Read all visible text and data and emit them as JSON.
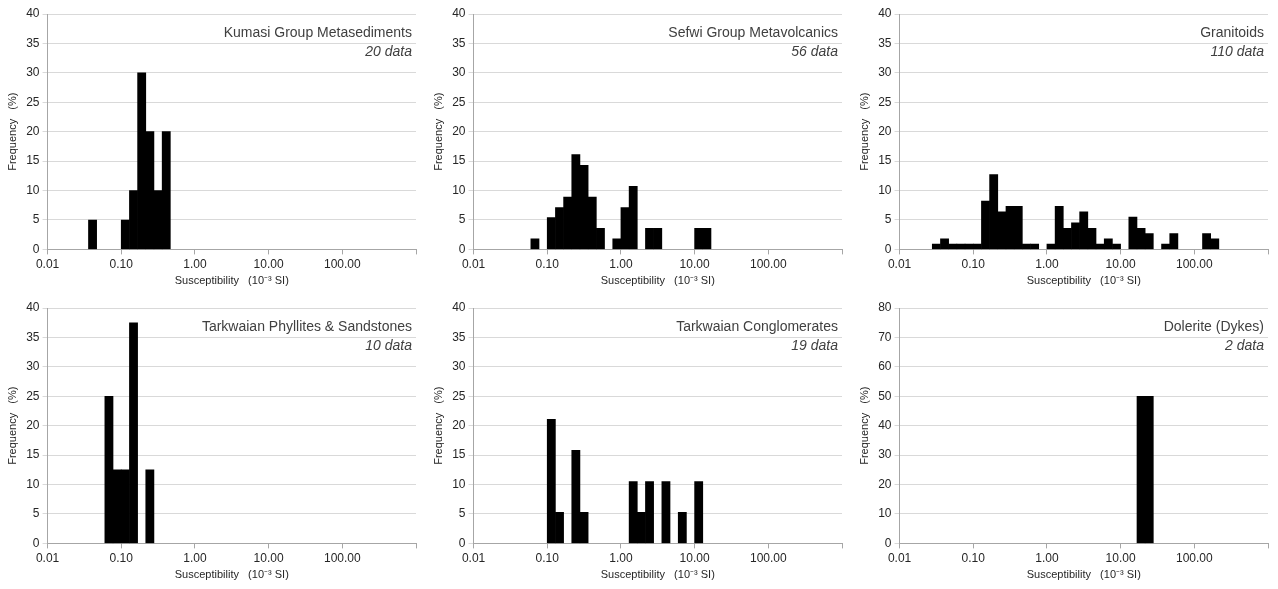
{
  "chart_data": [
    {
      "type": "histogram",
      "annotations": [
        "Kumasi Group Metasediments",
        "20 data"
      ],
      "xlabel": "Susceptibility   (10⁻³ SI)",
      "ylabel": "Frequency   (%)",
      "color": "#000000",
      "log": "x",
      "grid": "y",
      "bins": [
        0.0359,
        0.0464,
        0.0599,
        0.0774,
        0.1,
        0.129,
        0.167,
        0.215,
        0.278,
        0.359,
        0.464
      ],
      "values": [
        5,
        0,
        0,
        0,
        5,
        10,
        30,
        20,
        10,
        20
      ],
      "xlim": [
        0.01,
        1000
      ],
      "xticks": [
        {
          "value": 0.01,
          "label": "0.01"
        },
        {
          "value": 0.1,
          "label": "0.10"
        },
        {
          "value": 1,
          "label": "1.00"
        },
        {
          "value": 10,
          "label": "10.00"
        },
        {
          "value": 100,
          "label": "100.00"
        },
        {
          "value": 1000,
          "label": null
        }
      ],
      "ylim": [
        0,
        40
      ],
      "yticks": [
        0,
        5,
        10,
        15,
        20,
        25,
        30,
        35,
        40
      ]
    },
    {
      "type": "histogram",
      "annotations": [
        "Sefwi Group Metavolcanics",
        "56 data"
      ],
      "xlabel": "Susceptibility   (10⁻³ SI)",
      "ylabel": "Frequency   (%)",
      "color": "#000000",
      "log": "x",
      "grid": "y",
      "bins": [
        0.0599,
        0.0774,
        0.1,
        0.129,
        0.167,
        0.215,
        0.278,
        0.359,
        0.464,
        0.599,
        0.774,
        1,
        1.29,
        1.67,
        2.15,
        2.78,
        3.59,
        4.64,
        5.99,
        7.74,
        10,
        12.9,
        16.7
      ],
      "values": [
        1.8,
        0,
        5.4,
        7.1,
        8.9,
        16.1,
        14.3,
        8.9,
        3.6,
        0,
        1.8,
        7.1,
        10.7,
        0,
        3.6,
        3.6,
        0,
        0,
        0,
        0,
        3.6,
        3.6
      ],
      "xlim": [
        0.01,
        1000
      ],
      "xticks": [
        {
          "value": 0.01,
          "label": "0.01"
        },
        {
          "value": 0.1,
          "label": "0.10"
        },
        {
          "value": 1,
          "label": "1.00"
        },
        {
          "value": 10,
          "label": "10.00"
        },
        {
          "value": 100,
          "label": "100.00"
        },
        {
          "value": 1000,
          "label": null
        }
      ],
      "ylim": [
        0,
        40
      ],
      "yticks": [
        0,
        5,
        10,
        15,
        20,
        25,
        30,
        35,
        40
      ]
    },
    {
      "type": "histogram",
      "annotations": [
        "Granitoids",
        "110 data"
      ],
      "xlabel": "Susceptibility   (10⁻³ SI)",
      "ylabel": "Frequency   (%)",
      "color": "#000000",
      "log": "x",
      "grid": "y",
      "bins": [
        0.0278,
        0.0359,
        0.0464,
        0.0599,
        0.0774,
        0.1,
        0.129,
        0.167,
        0.215,
        0.278,
        0.359,
        0.464,
        0.599,
        0.774,
        1,
        1.29,
        1.67,
        2.15,
        2.78,
        3.59,
        4.64,
        5.99,
        7.74,
        10,
        12.9,
        16.7,
        21.5,
        27.8,
        35.9,
        46.4,
        59.9,
        77.4,
        100,
        129,
        167,
        215
      ],
      "values": [
        0.9,
        1.8,
        0.9,
        0.9,
        0.9,
        0.9,
        8.2,
        12.7,
        6.4,
        7.3,
        7.3,
        0.9,
        0.9,
        0,
        0.9,
        7.3,
        3.6,
        4.5,
        6.4,
        3.6,
        0.9,
        1.8,
        0.9,
        0,
        5.5,
        3.6,
        2.7,
        0,
        0.9,
        2.7,
        0,
        0,
        0,
        2.7,
        1.8
      ],
      "xlim": [
        0.01,
        1000
      ],
      "xticks": [
        {
          "value": 0.01,
          "label": "0.01"
        },
        {
          "value": 0.1,
          "label": "0.10"
        },
        {
          "value": 1,
          "label": "1.00"
        },
        {
          "value": 10,
          "label": "10.00"
        },
        {
          "value": 100,
          "label": "100.00"
        },
        {
          "value": 1000,
          "label": null
        }
      ],
      "ylim": [
        0,
        40
      ],
      "yticks": [
        0,
        5,
        10,
        15,
        20,
        25,
        30,
        35,
        40
      ]
    },
    {
      "type": "histogram",
      "annotations": [
        "Tarkwaian Phyllites & Sandstones",
        "10 data"
      ],
      "xlabel": "Susceptibility   (10⁻³ SI)",
      "ylabel": "Frequency   (%)",
      "color": "#000000",
      "log": "x",
      "grid": "y",
      "bins": [
        0.0599,
        0.0774,
        0.1,
        0.129,
        0.167,
        0.215,
        0.278
      ],
      "values": [
        25,
        12.5,
        12.5,
        37.5,
        0,
        12.5
      ],
      "xlim": [
        0.01,
        1000
      ],
      "xticks": [
        {
          "value": 0.01,
          "label": "0.01"
        },
        {
          "value": 0.1,
          "label": "0.10"
        },
        {
          "value": 1,
          "label": "1.00"
        },
        {
          "value": 10,
          "label": "10.00"
        },
        {
          "value": 100,
          "label": "100.00"
        },
        {
          "value": 1000,
          "label": null
        }
      ],
      "ylim": [
        0,
        40
      ],
      "yticks": [
        0,
        5,
        10,
        15,
        20,
        25,
        30,
        35,
        40
      ]
    },
    {
      "type": "histogram",
      "annotations": [
        "Tarkwaian Conglomerates",
        "19 data"
      ],
      "xlabel": "Susceptibility   (10⁻³ SI)",
      "ylabel": "Frequency   (%)",
      "color": "#000000",
      "log": "x",
      "grid": "y",
      "bins": [
        0.1,
        0.129,
        0.167,
        0.215,
        0.278,
        0.359,
        0.464,
        0.599,
        0.774,
        1,
        1.29,
        1.67,
        2.15,
        2.78,
        3.59,
        4.64,
        5.99,
        7.74,
        10,
        12.9
      ],
      "values": [
        21.1,
        5.3,
        0,
        15.8,
        5.3,
        0,
        0,
        0,
        0,
        0,
        10.5,
        5.3,
        10.5,
        0,
        10.5,
        0,
        5.3,
        0,
        10.5
      ],
      "xlim": [
        0.01,
        1000
      ],
      "xticks": [
        {
          "value": 0.01,
          "label": "0.01"
        },
        {
          "value": 0.1,
          "label": "0.10"
        },
        {
          "value": 1,
          "label": "1.00"
        },
        {
          "value": 10,
          "label": "10.00"
        },
        {
          "value": 100,
          "label": "100.00"
        },
        {
          "value": 1000,
          "label": null
        }
      ],
      "ylim": [
        0,
        40
      ],
      "yticks": [
        0,
        5,
        10,
        15,
        20,
        25,
        30,
        35,
        40
      ]
    },
    {
      "type": "histogram",
      "annotations": [
        "Dolerite (Dykes)",
        "2 data"
      ],
      "xlabel": "Susceptibility   (10⁻³ SI)",
      "ylabel": "Frequency   (%)",
      "color": "#000000",
      "log": "x",
      "grid": "y",
      "bins": [
        16.7,
        21.5,
        27.8
      ],
      "values": [
        50,
        50
      ],
      "xlim": [
        0.01,
        1000
      ],
      "xticks": [
        {
          "value": 0.01,
          "label": "0.01"
        },
        {
          "value": 0.1,
          "label": "0.10"
        },
        {
          "value": 1,
          "label": "1.00"
        },
        {
          "value": 10,
          "label": "10.00"
        },
        {
          "value": 100,
          "label": "100.00"
        },
        {
          "value": 1000,
          "label": null
        }
      ],
      "ylim": [
        0,
        80
      ],
      "yticks": [
        0,
        10,
        20,
        30,
        40,
        50,
        60,
        70,
        80
      ]
    }
  ]
}
